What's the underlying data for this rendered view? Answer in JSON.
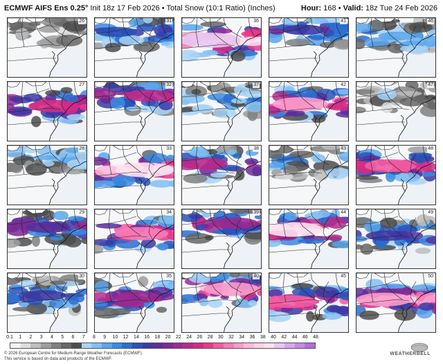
{
  "header": {
    "model": "ECMWF AIFS Ens 0.25°",
    "init": "Init 18z 17 Feb 2026",
    "separator": "•",
    "field": "Total Snow (10:1 Ratio) (Inches)",
    "hour_label": "Hour:",
    "hour_value": "168",
    "valid_label": "Valid:",
    "valid_value": "18z Tue 24 Feb 2026"
  },
  "map": {
    "columns": 5,
    "rows": 5,
    "members": [
      {
        "id": "26",
        "intensity": 0.05,
        "center": 0.1
      },
      {
        "id": "31",
        "intensity": 0.45,
        "center": 0.2
      },
      {
        "id": "36",
        "intensity": 1.0,
        "center": 0.4
      },
      {
        "id": "41",
        "intensity": 0.5,
        "center": 0.15
      },
      {
        "id": "46",
        "intensity": 0.35,
        "center": 0.3
      },
      {
        "id": "27",
        "intensity": 0.7,
        "center": 0.45
      },
      {
        "id": "32",
        "intensity": 0.65,
        "center": 0.2
      },
      {
        "id": "37",
        "intensity": 0.3,
        "center": 0.3
      },
      {
        "id": "42",
        "intensity": 0.85,
        "center": 0.4
      },
      {
        "id": "47",
        "intensity": 0.1,
        "center": 0.2
      },
      {
        "id": "28",
        "intensity": 0.25,
        "center": 0.1
      },
      {
        "id": "33",
        "intensity": 0.95,
        "center": 0.45
      },
      {
        "id": "38",
        "intensity": 0.65,
        "center": 0.3
      },
      {
        "id": "43",
        "intensity": 0.3,
        "center": 0.25
      },
      {
        "id": "48",
        "intensity": 0.75,
        "center": 0.35
      },
      {
        "id": "29",
        "intensity": 0.55,
        "center": 0.3
      },
      {
        "id": "34",
        "intensity": 0.8,
        "center": 0.45
      },
      {
        "id": "39",
        "intensity": 0.6,
        "center": 0.2
      },
      {
        "id": "44",
        "intensity": 0.95,
        "center": 0.35
      },
      {
        "id": "49",
        "intensity": 0.5,
        "center": 0.5
      },
      {
        "id": "30",
        "intensity": 0.5,
        "center": 0.4
      },
      {
        "id": "35",
        "intensity": 0.6,
        "center": 0.45
      },
      {
        "id": "40",
        "intensity": 0.85,
        "center": 0.25
      },
      {
        "id": "45",
        "intensity": 0.75,
        "center": 0.55
      },
      {
        "id": "50",
        "intensity": 0.85,
        "center": 0.5
      }
    ]
  },
  "colorbar": {
    "ticks": [
      "0.1",
      "1",
      "2",
      "3",
      "4",
      "5",
      "6",
      "7",
      "8",
      "9",
      "10",
      "12",
      "14",
      "16",
      "18",
      "20",
      "22",
      "24",
      "26",
      "28",
      "30",
      "32",
      "34",
      "36",
      "38",
      "40",
      "42",
      "44",
      "46",
      "48"
    ],
    "colors": [
      "#f4f4f4",
      "#dcdcdc",
      "#bdbdbd",
      "#9e9e9e",
      "#808080",
      "#666666",
      "#4d4d4d",
      "#a8d4f7",
      "#82bff2",
      "#5aa6ec",
      "#3a8be0",
      "#2a6fd0",
      "#2a52b8",
      "#3b3aa3",
      "#5a2f9a",
      "#7a2a96",
      "#9a2a92",
      "#b82a8c",
      "#d22c86",
      "#e83a8a",
      "#f25aa0",
      "#f77ab6",
      "#fa9bcb",
      "#fcbad9",
      "#fdd0e6",
      "#fde2ef",
      "#e8c8f0",
      "#d7a8ea",
      "#c58ae2",
      "#b46cd8"
    ]
  },
  "footer": {
    "line1": "© 2026 European Centre for Medium-Range Weather Forecasts (ECMWF).",
    "line2": "This service is based on data and products of the ECMWF."
  },
  "logo": {
    "text": "WEATHERBELL"
  }
}
